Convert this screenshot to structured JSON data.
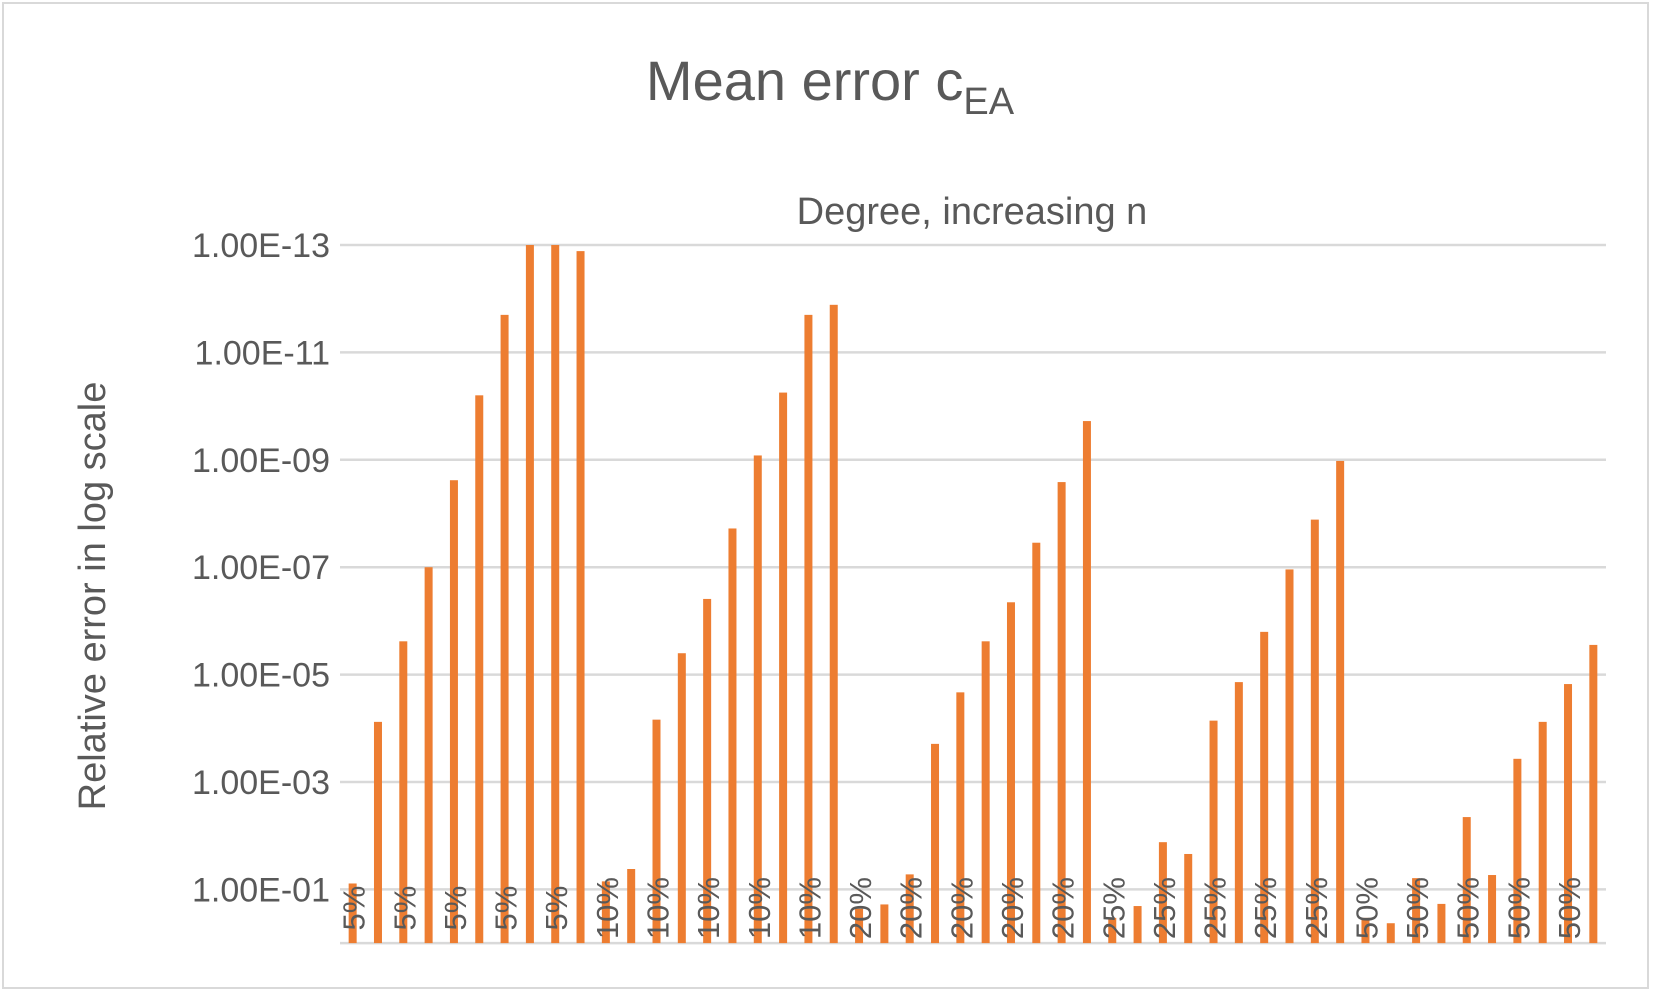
{
  "chart_data": {
    "type": "bar",
    "title": "Mean error c",
    "title_subscript": "EA",
    "subtitle": "Degree, increasing n",
    "ylabel": "Relative error in log scale",
    "xlabel": "",
    "y_scale": "log",
    "y_reversed": true,
    "y_axis_crosses_at": 1,
    "ylim": [
      1e-13,
      1
    ],
    "y_ticks": [
      "1.00E-13",
      "1.00E-11",
      "1.00E-09",
      "1.00E-07",
      "1.00E-05",
      "1.00E-03",
      "1.00E-01"
    ],
    "grid": true,
    "legend": "none",
    "bar_color": "#ED7D31",
    "categories": [
      "5%",
      "5%",
      "5%",
      "5%",
      "5%",
      "5%",
      "5%",
      "5%",
      "5%",
      "5%",
      "10%",
      "10%",
      "10%",
      "10%",
      "10%",
      "10%",
      "10%",
      "10%",
      "10%",
      "10%",
      "20%",
      "20%",
      "20%",
      "20%",
      "20%",
      "20%",
      "20%",
      "20%",
      "20%",
      "20%",
      "25%",
      "25%",
      "25%",
      "25%",
      "25%",
      "25%",
      "25%",
      "25%",
      "25%",
      "25%",
      "50%",
      "50%",
      "50%",
      "50%",
      "50%",
      "50%",
      "50%",
      "50%",
      "50%",
      "50%"
    ],
    "tick_labels_shown": [
      "5%",
      "5%",
      "5%",
      "5%",
      "5%",
      "10%",
      "10%",
      "10%",
      "10%",
      "10%",
      "20%",
      "20%",
      "20%",
      "20%",
      "20%",
      "25%",
      "25%",
      "25%",
      "25%",
      "25%",
      "50%",
      "50%",
      "50%",
      "50%",
      "50%"
    ],
    "values": [
      0.0776,
      7.59e-05,
      2.4e-06,
      1e-07,
      2.4e-09,
      6.3e-11,
      2e-12,
      1e-13,
      1e-13,
      1.3e-13,
      0.0708,
      0.0417,
      6.9e-05,
      4e-06,
      3.9e-07,
      1.9e-08,
      8.3e-10,
      5.6e-11,
      2e-12,
      1.3e-12,
      0.2291,
      0.1905,
      0.0525,
      0.000195,
      2.14e-05,
      2.4e-06,
      4.5e-07,
      3.5e-08,
      2.6e-09,
      1.9e-10,
      0.3388,
      0.2042,
      0.0132,
      0.0219,
      7.2e-05,
      1.38e-05,
      1.6e-06,
      1.1e-07,
      1.3e-08,
      1.05e-09,
      0.3388,
      0.4266,
      0.0617,
      0.1862,
      0.0045,
      0.054,
      0.00037,
      7.59e-05,
      1.5e-05,
      2.8e-06
    ]
  }
}
